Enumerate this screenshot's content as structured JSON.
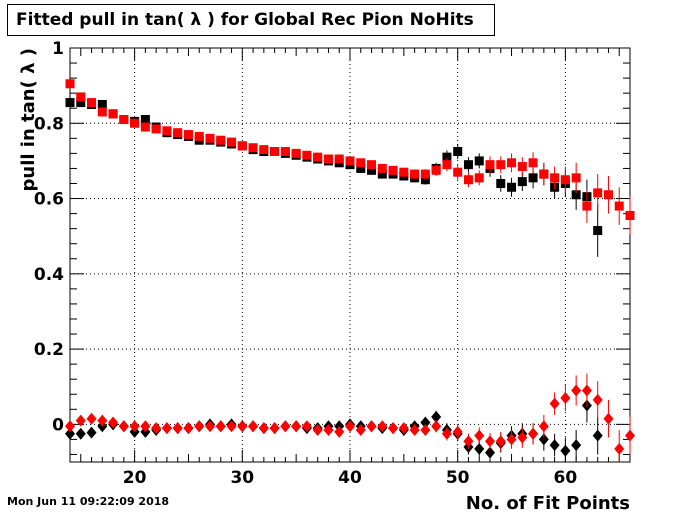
{
  "title": "Fitted pull in tan( λ ) for Global Rec Pion NoHits",
  "footer": "Mon Jun 11 09:22:09 2018",
  "chart_data": {
    "type": "scatter",
    "xlabel": "No. of Fit Points",
    "ylabel": "pull in tan( λ )",
    "xlim": [
      14,
      66
    ],
    "ylim": [
      -0.1,
      1.0
    ],
    "xticks": [
      20,
      30,
      40,
      50,
      60
    ],
    "xtick_labels": [
      "20",
      "30",
      "40",
      "50",
      "60"
    ],
    "yticks": [
      0,
      0.2,
      0.4,
      0.6,
      0.8,
      1.0
    ],
    "ytick_labels": [
      "0",
      "0.2",
      "0.4",
      "0.6",
      "0.8",
      "1"
    ],
    "grid": true,
    "series": [
      {
        "color": "#000000",
        "marker": "square",
        "x": [
          14,
          15,
          16,
          17,
          18,
          19,
          20,
          21,
          22,
          23,
          24,
          25,
          26,
          27,
          28,
          29,
          30,
          31,
          32,
          33,
          34,
          35,
          36,
          37,
          38,
          39,
          40,
          41,
          42,
          43,
          44,
          45,
          46,
          47,
          48,
          49,
          50,
          51,
          52,
          53,
          54,
          55,
          56,
          57,
          58,
          59,
          60,
          61,
          62,
          63
        ],
        "y": [
          0.855,
          0.855,
          0.85,
          0.85,
          0.825,
          0.81,
          0.805,
          0.81,
          0.79,
          0.775,
          0.77,
          0.765,
          0.755,
          0.755,
          0.75,
          0.745,
          0.74,
          0.73,
          0.725,
          0.725,
          0.72,
          0.715,
          0.71,
          0.705,
          0.7,
          0.695,
          0.69,
          0.68,
          0.675,
          0.665,
          0.665,
          0.66,
          0.655,
          0.65,
          0.68,
          0.71,
          0.725,
          0.69,
          0.7,
          0.68,
          0.64,
          0.63,
          0.645,
          0.655,
          0.665,
          0.63,
          0.64,
          0.61,
          0.605,
          0.515
        ],
        "err": [
          0.01,
          0.01,
          0.01,
          0.01,
          0.01,
          0.008,
          0.008,
          0.008,
          0.007,
          0.007,
          0.007,
          0.006,
          0.006,
          0.006,
          0.006,
          0.006,
          0.006,
          0.006,
          0.006,
          0.006,
          0.006,
          0.006,
          0.006,
          0.006,
          0.006,
          0.007,
          0.007,
          0.008,
          0.008,
          0.009,
          0.01,
          0.01,
          0.012,
          0.013,
          0.015,
          0.018,
          0.02,
          0.02,
          0.02,
          0.022,
          0.022,
          0.025,
          0.025,
          0.028,
          0.03,
          0.03,
          0.035,
          0.04,
          0.045,
          0.07
        ]
      },
      {
        "color": "#ff0000",
        "marker": "square",
        "x": [
          14,
          15,
          16,
          17,
          18,
          19,
          20,
          21,
          22,
          23,
          24,
          25,
          26,
          27,
          28,
          29,
          30,
          31,
          32,
          33,
          34,
          35,
          36,
          37,
          38,
          39,
          40,
          41,
          42,
          43,
          44,
          45,
          46,
          47,
          48,
          49,
          50,
          51,
          52,
          53,
          54,
          55,
          56,
          57,
          58,
          59,
          60,
          61,
          62,
          63,
          64,
          65,
          66
        ],
        "y": [
          0.905,
          0.87,
          0.855,
          0.83,
          0.825,
          0.81,
          0.8,
          0.79,
          0.785,
          0.78,
          0.775,
          0.77,
          0.765,
          0.76,
          0.755,
          0.75,
          0.74,
          0.735,
          0.73,
          0.725,
          0.725,
          0.72,
          0.715,
          0.71,
          0.705,
          0.705,
          0.7,
          0.695,
          0.69,
          0.68,
          0.675,
          0.67,
          0.665,
          0.665,
          0.675,
          0.69,
          0.67,
          0.65,
          0.655,
          0.69,
          0.69,
          0.695,
          0.685,
          0.695,
          0.665,
          0.655,
          0.65,
          0.655,
          0.58,
          0.615,
          0.61,
          0.58,
          0.555
        ],
        "err": [
          0.01,
          0.01,
          0.01,
          0.01,
          0.01,
          0.008,
          0.008,
          0.008,
          0.007,
          0.007,
          0.007,
          0.006,
          0.006,
          0.006,
          0.006,
          0.006,
          0.006,
          0.006,
          0.006,
          0.006,
          0.006,
          0.006,
          0.006,
          0.006,
          0.006,
          0.007,
          0.007,
          0.008,
          0.008,
          0.009,
          0.01,
          0.01,
          0.012,
          0.013,
          0.015,
          0.018,
          0.02,
          0.02,
          0.02,
          0.022,
          0.022,
          0.025,
          0.025,
          0.028,
          0.03,
          0.03,
          0.035,
          0.04,
          0.045,
          0.05,
          0.05,
          0.05,
          0.05
        ]
      },
      {
        "color": "#000000",
        "marker": "diamond",
        "x": [
          14,
          15,
          16,
          17,
          18,
          19,
          20,
          21,
          22,
          23,
          24,
          25,
          26,
          27,
          28,
          29,
          30,
          31,
          32,
          33,
          34,
          35,
          36,
          37,
          38,
          39,
          40,
          41,
          42,
          43,
          44,
          45,
          46,
          47,
          48,
          49,
          50,
          51,
          52,
          53,
          54,
          55,
          56,
          57,
          58,
          59,
          60,
          61,
          62,
          63
        ],
        "y": [
          -0.025,
          -0.025,
          -0.022,
          -0.005,
          0.0,
          -0.005,
          -0.02,
          -0.02,
          -0.015,
          -0.01,
          -0.01,
          -0.01,
          -0.005,
          0.0,
          -0.005,
          0.0,
          -0.005,
          -0.005,
          -0.01,
          -0.01,
          -0.005,
          -0.005,
          -0.01,
          -0.01,
          -0.005,
          -0.005,
          0.0,
          -0.005,
          -0.005,
          -0.01,
          -0.01,
          -0.015,
          -0.005,
          0.005,
          0.02,
          -0.015,
          -0.025,
          -0.06,
          -0.065,
          -0.075,
          -0.05,
          -0.03,
          -0.025,
          -0.025,
          -0.04,
          -0.055,
          -0.07,
          -0.055,
          0.05,
          -0.03
        ],
        "err": [
          0.008,
          0.008,
          0.008,
          0.008,
          0.008,
          0.008,
          0.008,
          0.008,
          0.008,
          0.008,
          0.008,
          0.008,
          0.008,
          0.008,
          0.008,
          0.008,
          0.008,
          0.008,
          0.008,
          0.008,
          0.008,
          0.008,
          0.008,
          0.008,
          0.008,
          0.008,
          0.008,
          0.008,
          0.008,
          0.008,
          0.008,
          0.01,
          0.012,
          0.014,
          0.016,
          0.018,
          0.02,
          0.02,
          0.022,
          0.022,
          0.025,
          0.025,
          0.028,
          0.028,
          0.03,
          0.03,
          0.035,
          0.04,
          0.045,
          0.05
        ]
      },
      {
        "color": "#ff0000",
        "marker": "diamond",
        "x": [
          14,
          15,
          16,
          17,
          18,
          19,
          20,
          21,
          22,
          23,
          24,
          25,
          26,
          27,
          28,
          29,
          30,
          31,
          32,
          33,
          34,
          35,
          36,
          37,
          38,
          39,
          40,
          41,
          42,
          43,
          44,
          45,
          46,
          47,
          48,
          49,
          50,
          51,
          52,
          53,
          54,
          55,
          56,
          57,
          58,
          59,
          60,
          61,
          62,
          63,
          64,
          65,
          66
        ],
        "y": [
          -0.005,
          0.01,
          0.015,
          0.01,
          0.005,
          -0.005,
          -0.005,
          -0.005,
          -0.01,
          -0.01,
          -0.01,
          -0.01,
          -0.005,
          -0.005,
          -0.005,
          -0.005,
          -0.005,
          -0.005,
          -0.01,
          -0.01,
          -0.005,
          -0.005,
          -0.005,
          -0.015,
          -0.015,
          -0.02,
          -0.005,
          -0.015,
          -0.005,
          -0.005,
          -0.01,
          -0.01,
          -0.015,
          -0.015,
          -0.005,
          -0.025,
          -0.02,
          -0.045,
          -0.03,
          -0.045,
          -0.045,
          -0.04,
          -0.035,
          -0.025,
          -0.005,
          0.055,
          0.07,
          0.09,
          0.09,
          0.065,
          0.015,
          -0.065,
          -0.03
        ],
        "err": [
          0.008,
          0.008,
          0.008,
          0.008,
          0.008,
          0.008,
          0.008,
          0.008,
          0.008,
          0.008,
          0.008,
          0.008,
          0.008,
          0.008,
          0.008,
          0.008,
          0.008,
          0.008,
          0.008,
          0.008,
          0.008,
          0.008,
          0.008,
          0.008,
          0.008,
          0.008,
          0.008,
          0.008,
          0.008,
          0.008,
          0.008,
          0.01,
          0.012,
          0.014,
          0.016,
          0.018,
          0.02,
          0.02,
          0.022,
          0.022,
          0.025,
          0.025,
          0.028,
          0.028,
          0.03,
          0.03,
          0.035,
          0.04,
          0.045,
          0.05,
          0.05,
          0.05,
          0.05
        ]
      }
    ]
  }
}
